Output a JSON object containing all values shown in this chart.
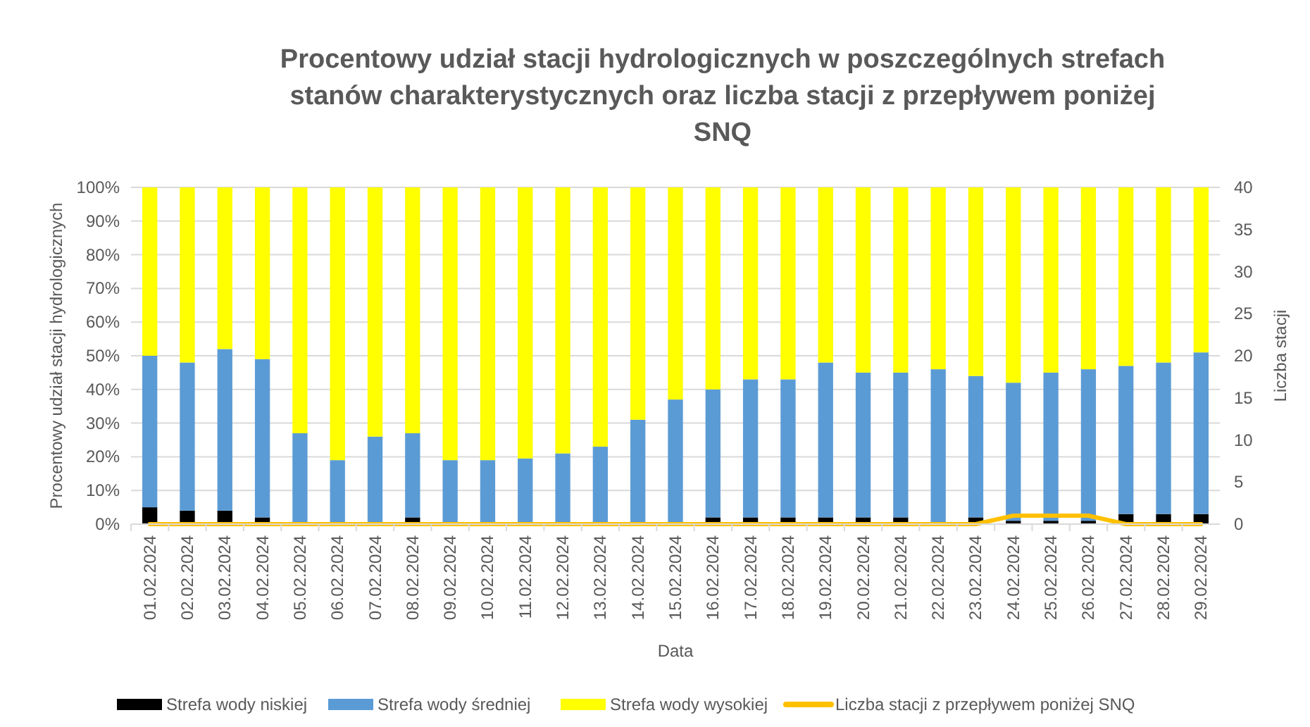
{
  "chart_data": {
    "type": "bar",
    "stacked": true,
    "title": "Procentowy udział stacji hydrologicznych w poszczególnych strefach stanów charakterystycznych oraz liczba stacji z przepływem poniżej SNQ",
    "xlabel": "Data",
    "ylabel": "Procentowy udział stacji hydrologicznych",
    "y2label": "Liczba stacji",
    "categories": [
      "01.02.2024",
      "02.02.2024",
      "03.02.2024",
      "04.02.2024",
      "05.02.2024",
      "06.02.2024",
      "07.02.2024",
      "08.02.2024",
      "09.02.2024",
      "10.02.2024",
      "11.02.2024",
      "12.02.2024",
      "13.02.2024",
      "14.02.2024",
      "15.02.2024",
      "16.02.2024",
      "17.02.2024",
      "18.02.2024",
      "19.02.2024",
      "20.02.2024",
      "21.02.2024",
      "22.02.2024",
      "23.02.2024",
      "24.02.2024",
      "25.02.2024",
      "26.02.2024",
      "27.02.2024",
      "28.02.2024",
      "29.02.2024"
    ],
    "series": [
      {
        "name": "Strefa wody niskiej",
        "color": "#000000",
        "values": [
          5,
          4,
          4,
          2,
          0,
          0,
          0,
          2,
          0,
          0,
          null,
          0,
          0,
          0,
          0,
          2,
          2,
          2,
          2,
          2,
          2,
          0,
          2,
          1,
          1,
          1,
          3,
          3,
          3
        ]
      },
      {
        "name": "Strefa wody średniej",
        "color": "#5b9bd5",
        "values": [
          45,
          44,
          48,
          47,
          27,
          19,
          26,
          25,
          19,
          19,
          19.5,
          21,
          23,
          31,
          37,
          38,
          41,
          41,
          46,
          43,
          43,
          46,
          42,
          41,
          44,
          45,
          44,
          45,
          48
        ]
      },
      {
        "name": "Strefa wody wysokiej",
        "color": "#ffff00",
        "values": [
          50,
          52,
          48,
          51,
          73,
          81,
          74,
          73,
          81,
          81,
          80.5,
          79,
          77,
          69,
          63,
          60,
          57,
          57,
          52,
          55,
          55,
          54,
          56,
          58,
          55,
          54,
          53,
          52,
          49
        ]
      },
      {
        "name": "Liczba stacji z przepływem poniżej SNQ",
        "color": "#ffc000",
        "type": "line",
        "axis": "y2",
        "values": [
          0,
          0,
          0,
          0,
          0,
          0,
          0,
          0,
          0,
          0,
          0,
          0,
          0,
          0,
          0,
          0,
          0,
          0,
          0,
          0,
          0,
          0,
          0,
          1,
          1,
          1,
          0,
          0,
          0
        ]
      }
    ],
    "ylim": [
      0,
      100
    ],
    "yticks": [
      {
        "value": 0,
        "label": "0%"
      },
      {
        "value": 10,
        "label": "10%"
      },
      {
        "value": 20,
        "label": "20%"
      },
      {
        "value": 30,
        "label": "30%"
      },
      {
        "value": 40,
        "label": "40%"
      },
      {
        "value": 50,
        "label": "50%"
      },
      {
        "value": 60,
        "label": "60%"
      },
      {
        "value": 70,
        "label": "70%"
      },
      {
        "value": 80,
        "label": "80%"
      },
      {
        "value": 90,
        "label": "90%"
      },
      {
        "value": 100,
        "label": "100%"
      }
    ],
    "y2lim": [
      0,
      40
    ],
    "y2ticks": [
      0,
      5,
      10,
      15,
      20,
      25,
      30,
      35,
      40
    ],
    "grid": "y",
    "legend": "bottom",
    "marker": "none"
  }
}
